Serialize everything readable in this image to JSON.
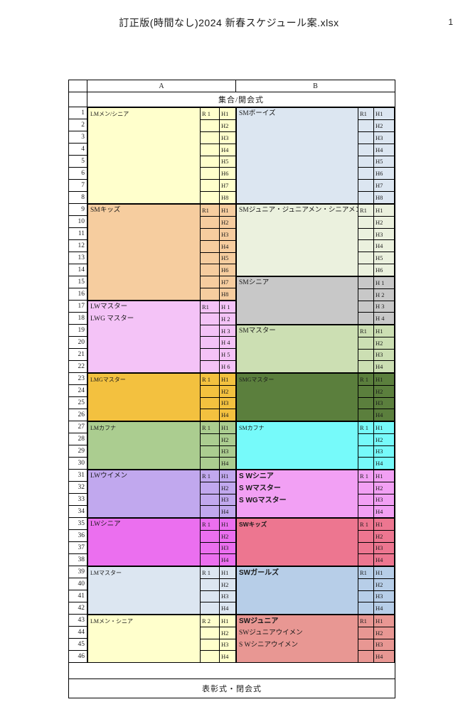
{
  "page": {
    "title": "訂正版(時間なし)2024 新春スケジュール案.xlsx",
    "page_number": "1"
  },
  "header": {
    "col_a": "A",
    "col_b": "B",
    "subheader": "集合/開会式"
  },
  "footer": {
    "label": "表彰式・閉会式"
  },
  "colors": {
    "light_yellow": "#FFFFCC",
    "pale_blue": "#DCE6F1",
    "peach": "#F6CD9F",
    "pale_green": "#EBF1DE",
    "gray": "#C8C8C8",
    "orchid": "#F4C3F7",
    "soft_green": "#CCDFB3",
    "gold": "#F3C13F",
    "dark_green": "#5B7F3D",
    "green": "#ABCD90",
    "cyan": "#76FAFA",
    "lavender": "#C1A8EE",
    "pink": "#F2A0F4",
    "magenta": "#EB6FEF",
    "salmon": "#ED7690",
    "steel_blue": "#B7CEE8",
    "rose": "#E89793",
    "border": "#000000"
  },
  "grid": {
    "row_count": 46,
    "blocks_a": [
      {
        "start": 1,
        "end": 8,
        "color": "light_yellow",
        "labels": [
          {
            "text": "LMメン/シニア",
            "small": true
          }
        ],
        "r": "R 1",
        "h": [
          "H1",
          "H2",
          "H3",
          "H4",
          "H5",
          "H6",
          "H7",
          "H8"
        ]
      },
      {
        "start": 9,
        "end": 16,
        "color": "peach",
        "labels": [
          {
            "text": "SMキッズ"
          }
        ],
        "r": "R1",
        "h": [
          "H1",
          "H2",
          "H3",
          "H4",
          "H5",
          "H6",
          "H7",
          "H8"
        ]
      },
      {
        "start": 17,
        "end": 22,
        "color": "orchid",
        "labels": [
          {
            "text": "LWマスター"
          },
          {
            "text": "LWG マスター"
          }
        ],
        "r": "R1",
        "h": [
          "H 1",
          "H 2",
          "H 3",
          "H 4",
          "H 5",
          "H 6"
        ]
      },
      {
        "start": 23,
        "end": 26,
        "color": "gold",
        "labels": [
          {
            "text": "LMGマスター",
            "small": true
          }
        ],
        "r": "R 1",
        "h": [
          "H1",
          "H2",
          "H3",
          "H4"
        ]
      },
      {
        "start": 27,
        "end": 30,
        "color": "green",
        "labels": [
          {
            "text": "LMカフナ",
            "small": true
          }
        ],
        "r": "R 1",
        "h": [
          "H1",
          "H2",
          "H3",
          "H4"
        ]
      },
      {
        "start": 31,
        "end": 34,
        "color": "lavender",
        "labels": [
          {
            "text": "LWウイメン"
          }
        ],
        "r": "R 1",
        "h": [
          "H1",
          "H2",
          "H3",
          "H4"
        ]
      },
      {
        "start": 35,
        "end": 38,
        "color": "magenta",
        "labels": [
          {
            "text": "LWシニア"
          }
        ],
        "r": "R 1",
        "h": [
          "H1",
          "H2",
          "H3",
          "H4"
        ]
      },
      {
        "start": 39,
        "end": 42,
        "color": "pale_blue",
        "labels": [
          {
            "text": "LMマスター",
            "small": true
          }
        ],
        "r": "R 1",
        "h": [
          "H1",
          "H2",
          "H3",
          "H4"
        ]
      },
      {
        "start": 43,
        "end": 46,
        "color": "light_yellow",
        "labels": [
          {
            "text": "LMメン・シニア",
            "small": true
          }
        ],
        "r": "R 2",
        "h": [
          "H1",
          "H2",
          "H3",
          "H4"
        ]
      }
    ],
    "blocks_b": [
      {
        "start": 1,
        "end": 8,
        "color": "pale_blue",
        "labels": [
          {
            "text": "SMボーイズ"
          }
        ],
        "r": "R1",
        "h": [
          "H1",
          "H2",
          "H3",
          "H4",
          "H5",
          "H6",
          "H7",
          "H8"
        ]
      },
      {
        "start": 9,
        "end": 14,
        "color": "pale_green",
        "labels": [
          {
            "text": "SMジュニア・ジュニアメン・シニアメン"
          }
        ],
        "r": "R1",
        "h": [
          "H1",
          "H2",
          "H3",
          "H4",
          "H5",
          "H6"
        ]
      },
      {
        "start": 15,
        "end": 18,
        "color": "gray",
        "labels": [
          {
            "text": "SMシニア"
          }
        ],
        "r": "",
        "h": [
          "H 1",
          "H 2",
          "H 3",
          "H 4"
        ]
      },
      {
        "start": 19,
        "end": 22,
        "color": "soft_green",
        "labels": [
          {
            "text": "SMマスター"
          }
        ],
        "r": "R1",
        "h": [
          "H1",
          "H2",
          "H3",
          "H4"
        ]
      },
      {
        "start": 23,
        "end": 26,
        "color": "dark_green",
        "labels": [
          {
            "text": "SMGマスター",
            "small": true
          }
        ],
        "r": "R 1",
        "h": [
          "H1",
          "H2",
          "H3",
          "H4"
        ]
      },
      {
        "start": 27,
        "end": 30,
        "color": "cyan",
        "labels": [
          {
            "text": "SMカフナ",
            "small": true
          }
        ],
        "r": "R 1",
        "h": [
          "H1",
          "H2",
          "H3",
          "H4"
        ]
      },
      {
        "start": 31,
        "end": 34,
        "color": "pink",
        "labels": [
          {
            "text": "S Wシニア",
            "bold": true
          },
          {
            "text": "S Wマスター",
            "bold": true
          },
          {
            "text": "S WGマスター",
            "bold": true
          }
        ],
        "r": "R 1",
        "h": [
          "H1",
          "H2",
          "H3",
          "H4"
        ]
      },
      {
        "start": 35,
        "end": 38,
        "color": "salmon",
        "labels": [
          {
            "text": "SWキッズ",
            "bold": true,
            "small": true
          }
        ],
        "r": "R 1",
        "h": [
          "H1",
          "H2",
          "H3",
          "H4"
        ]
      },
      {
        "start": 39,
        "end": 42,
        "color": "steel_blue",
        "labels": [
          {
            "text": "SWガールズ",
            "bold": true
          }
        ],
        "r": "R1",
        "h": [
          "H1",
          "H2",
          "H3",
          "H4"
        ]
      },
      {
        "start": 43,
        "end": 46,
        "color": "rose",
        "labels": [
          {
            "text": "SWジュニア",
            "bold": true
          },
          {
            "text": "SWジュニアウイメン"
          },
          {
            "text": "S Wシニアウイメン"
          }
        ],
        "r": "R1",
        "h": [
          "H1",
          "H2",
          "H3",
          "H4"
        ]
      }
    ]
  }
}
